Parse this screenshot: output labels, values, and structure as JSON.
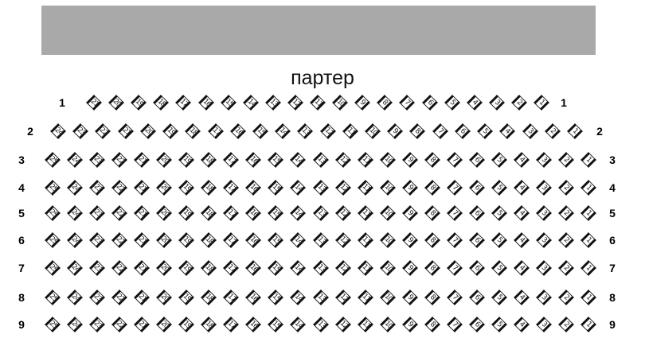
{
  "screen_label": "",
  "hall": {
    "title": "партер"
  },
  "rows": [
    {
      "label": "1",
      "seats": [
        21,
        20,
        19,
        18,
        17,
        16,
        15,
        14,
        13,
        12,
        11,
        10,
        9,
        8,
        7,
        6,
        5,
        4,
        3,
        2,
        1
      ]
    },
    {
      "label": "2",
      "seats": [
        24,
        23,
        22,
        21,
        20,
        19,
        18,
        17,
        16,
        15,
        14,
        13,
        12,
        11,
        10,
        9,
        8,
        7,
        6,
        5,
        4,
        3,
        2,
        1
      ]
    },
    {
      "label": "3",
      "seats": [
        25,
        24,
        23,
        22,
        21,
        20,
        19,
        18,
        17,
        16,
        15,
        14,
        13,
        12,
        11,
        10,
        9,
        8,
        7,
        6,
        5,
        4,
        3,
        2,
        1
      ]
    },
    {
      "label": "4",
      "seats": [
        25,
        24,
        23,
        22,
        21,
        20,
        19,
        18,
        17,
        16,
        15,
        14,
        13,
        12,
        11,
        10,
        9,
        8,
        7,
        6,
        5,
        4,
        3,
        2,
        1
      ]
    },
    {
      "label": "5",
      "seats": [
        25,
        24,
        23,
        22,
        21,
        20,
        19,
        18,
        17,
        16,
        15,
        14,
        13,
        12,
        11,
        10,
        9,
        8,
        7,
        6,
        5,
        4,
        3,
        2,
        1
      ]
    },
    {
      "label": "6",
      "seats": [
        25,
        24,
        23,
        22,
        21,
        20,
        19,
        18,
        17,
        16,
        15,
        14,
        13,
        12,
        11,
        10,
        9,
        8,
        7,
        6,
        5,
        4,
        3,
        2,
        1
      ]
    },
    {
      "label": "7",
      "seats": [
        25,
        24,
        23,
        22,
        21,
        20,
        19,
        18,
        17,
        16,
        15,
        14,
        13,
        12,
        11,
        10,
        9,
        8,
        7,
        6,
        5,
        4,
        3,
        2,
        1
      ]
    },
    {
      "label": "8",
      "seats": [
        25,
        24,
        23,
        22,
        21,
        20,
        19,
        18,
        17,
        16,
        15,
        14,
        13,
        12,
        11,
        10,
        9,
        8,
        7,
        6,
        5,
        4,
        3,
        2,
        1
      ]
    },
    {
      "label": "9",
      "seats": [
        25,
        24,
        23,
        22,
        21,
        20,
        19,
        18,
        17,
        16,
        15,
        14,
        13,
        12,
        11,
        10,
        9,
        8,
        7,
        6,
        5,
        4,
        3,
        2,
        1
      ]
    }
  ],
  "colors": {
    "screen": "#aaa9aa",
    "seat_border": "#111111"
  }
}
